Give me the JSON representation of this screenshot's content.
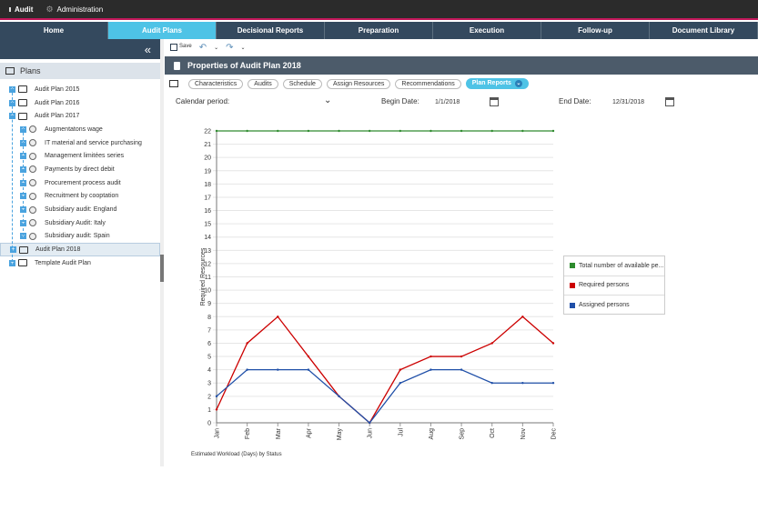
{
  "topbar": {
    "items": [
      {
        "label": "Audit"
      },
      {
        "label": "Administration"
      }
    ]
  },
  "nav": {
    "tabs": [
      {
        "label": "Home"
      },
      {
        "label": "Audit Plans"
      },
      {
        "label": "Decisional Reports"
      },
      {
        "label": "Preparation"
      },
      {
        "label": "Execution"
      },
      {
        "label": "Follow-up"
      },
      {
        "label": "Document Library"
      }
    ],
    "active": "Audit Plans"
  },
  "sidebar": {
    "collapse_glyph": "«",
    "header": "Plans",
    "items": [
      {
        "label": "Audit Plan 2015",
        "level": 0,
        "icon": "book-icon"
      },
      {
        "label": "Audit Plan 2016",
        "level": 0,
        "icon": "book-icon"
      },
      {
        "label": "Audit Plan 2017",
        "level": 0,
        "icon": "book-icon"
      },
      {
        "label": "Augmentatons wage",
        "level": 1,
        "icon": "database-icon"
      },
      {
        "label": "IT material and service purchasing",
        "level": 1,
        "icon": "database-icon"
      },
      {
        "label": "Management limitées series",
        "level": 1,
        "icon": "database-icon"
      },
      {
        "label": "Payments by direct debit",
        "level": 1,
        "icon": "database-icon"
      },
      {
        "label": "Procurement process audit",
        "level": 1,
        "icon": "database-icon"
      },
      {
        "label": "Recruitment by cooptation",
        "level": 1,
        "icon": "database-icon"
      },
      {
        "label": "Subsidiary audit: England",
        "level": 1,
        "icon": "database-icon"
      },
      {
        "label": "Subsidiary Audit: Italy",
        "level": 1,
        "icon": "database-icon"
      },
      {
        "label": "Subsidiary audit: Spain",
        "level": 1,
        "icon": "database-icon"
      },
      {
        "label": "Audit Plan 2018",
        "level": 0,
        "icon": "book-icon",
        "selected": true
      },
      {
        "label": "Template Audit Plan",
        "level": 0,
        "icon": "book-icon"
      }
    ]
  },
  "toolbar": {
    "save_label": "Save"
  },
  "main": {
    "title": "Properties of Audit Plan 2018",
    "subtabs": [
      {
        "label": "Characteristics"
      },
      {
        "label": "Audits"
      },
      {
        "label": "Schedule"
      },
      {
        "label": "Assign Resources"
      },
      {
        "label": "Recommendations"
      },
      {
        "label": "Plan Reports"
      }
    ],
    "active_subtab": "Plan Reports",
    "calendar_period_label": "Calendar period:",
    "begin_date_label": "Begin Date:",
    "begin_date": "1/1/2018",
    "end_date_label": "End Date:",
    "end_date": "12/31/2018"
  },
  "chart_data": {
    "type": "line",
    "title": "",
    "xlabel": "",
    "ylabel": "Required Resources",
    "caption": "Estimated Workload (Days) by Status",
    "categories": [
      "Jan",
      "Feb",
      "Mar",
      "Apr",
      "May",
      "Jun",
      "Jul",
      "Aug",
      "Sep",
      "Oct",
      "Nov",
      "Dec"
    ],
    "ylim": [
      0,
      22
    ],
    "yticks": [
      0,
      1,
      2,
      3,
      4,
      5,
      6,
      7,
      8,
      9,
      10,
      11,
      12,
      13,
      14,
      15,
      16,
      17,
      18,
      19,
      20,
      21,
      22
    ],
    "grid": true,
    "legend_position": "right",
    "series": [
      {
        "name": "Total number of available pe...",
        "color": "#2e8b2e",
        "values": [
          22,
          22,
          22,
          22,
          22,
          22,
          22,
          22,
          22,
          22,
          22,
          22
        ]
      },
      {
        "name": "Required persons",
        "color": "#cc0000",
        "values": [
          1,
          6,
          8,
          5,
          2,
          0,
          4,
          5,
          5,
          6,
          8,
          6
        ]
      },
      {
        "name": "Assigned persons",
        "color": "#1f4fa8",
        "values": [
          2,
          4,
          4,
          4,
          2,
          0,
          3,
          4,
          4,
          3,
          3,
          3
        ]
      }
    ]
  }
}
